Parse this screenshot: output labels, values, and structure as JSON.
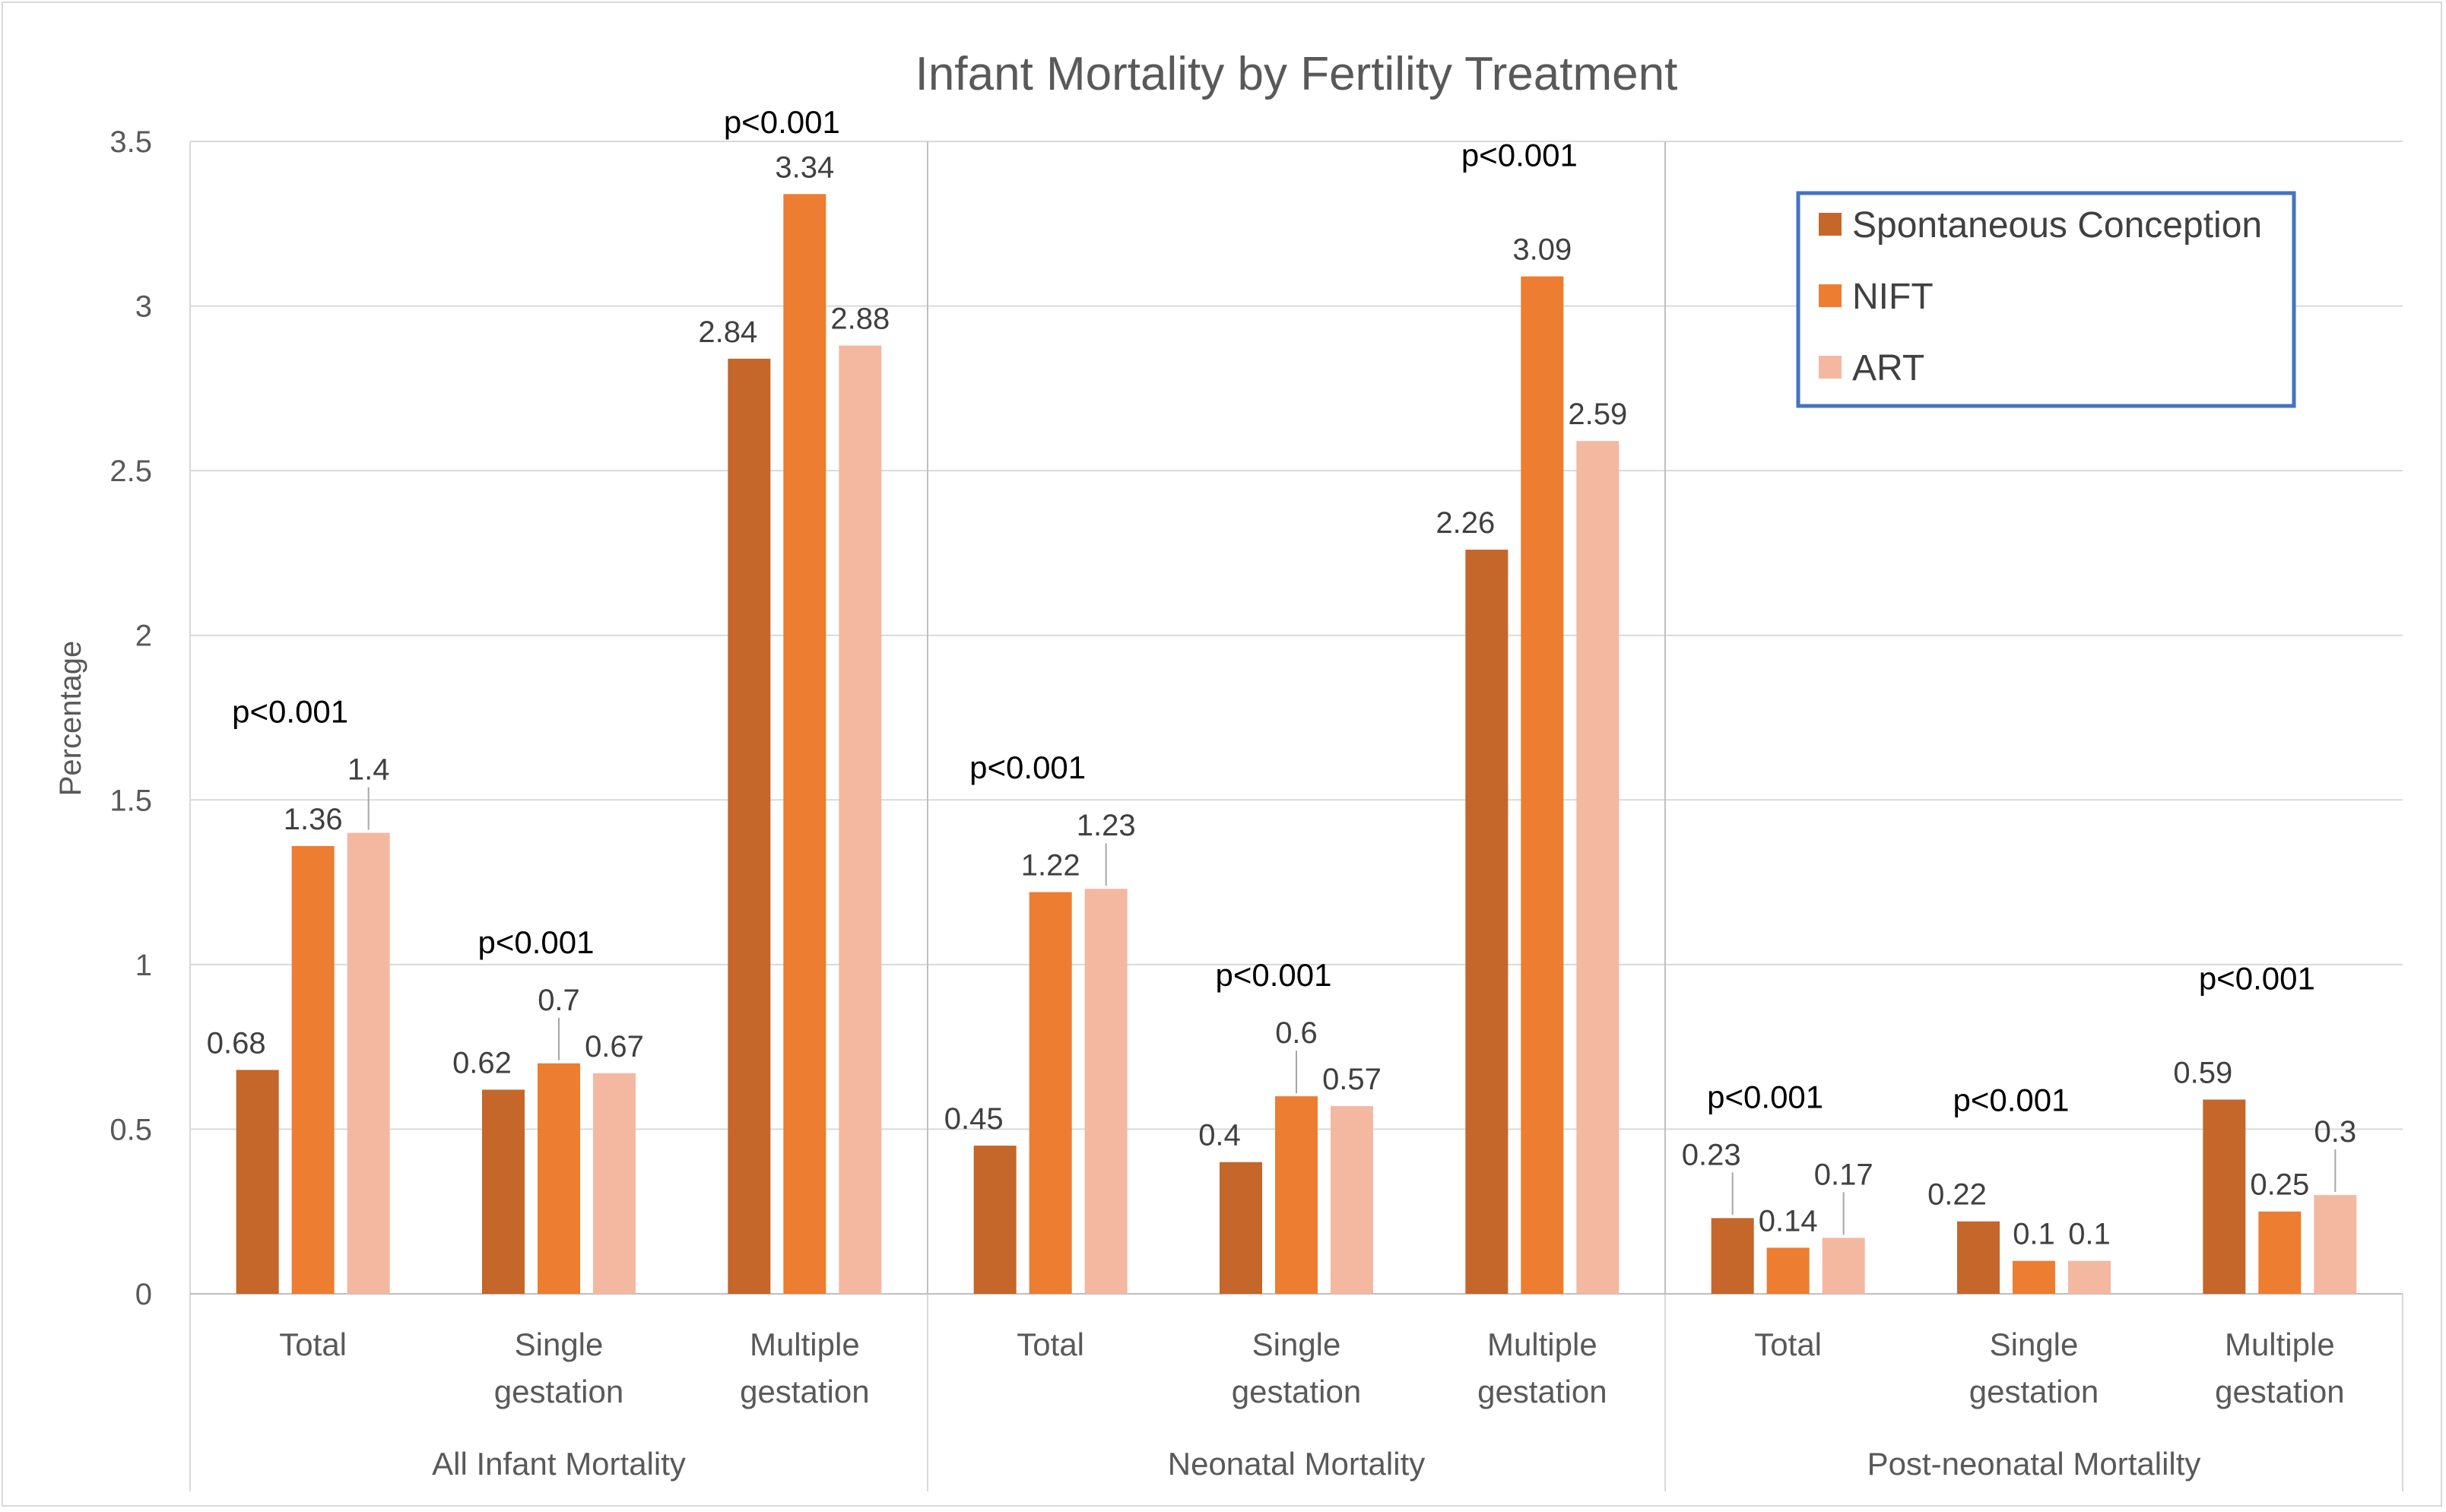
{
  "chart_data": {
    "type": "bar",
    "title": "Infant Mortality by Fertility Treatment",
    "ylabel": "Percentage",
    "xlabel": "",
    "ylim": [
      0,
      3.5
    ],
    "yticks": [
      "0",
      "0.5",
      "1",
      "1.5",
      "2",
      "2.5",
      "3",
      "3.5"
    ],
    "grid": true,
    "legend_position": "top-right",
    "groups": [
      {
        "label": "All Infant Mortality",
        "categories": [
          [
            "Total"
          ],
          [
            "Single",
            "gestation"
          ],
          [
            "Multiple",
            "gestation"
          ]
        ],
        "pvalues": [
          "p<0.001",
          "p<0.001",
          "p<0.001"
        ]
      },
      {
        "label": "Neonatal Mortality",
        "categories": [
          [
            "Total"
          ],
          [
            "Single",
            "gestation"
          ],
          [
            "Multiple",
            "gestation"
          ]
        ],
        "pvalues": [
          "p<0.001",
          "p<0.001",
          "p<0.001"
        ]
      },
      {
        "label": "Post-neonatal Mortalilty",
        "categories": [
          [
            "Total"
          ],
          [
            "Single",
            "gestation"
          ],
          [
            "Multiple",
            "gestation"
          ]
        ],
        "pvalues": [
          "p<0.001",
          "p<0.001",
          "p<0.001"
        ]
      }
    ],
    "series": [
      {
        "name": "Spontaneous Conception",
        "color": "#c5662a",
        "values": [
          0.68,
          0.62,
          2.84,
          0.45,
          0.4,
          2.26,
          0.23,
          0.22,
          0.59
        ],
        "labels": [
          "0.68",
          "0.62",
          "2.84",
          "0.45",
          "0.4",
          "2.26",
          "0.23",
          "0.22",
          "0.59"
        ]
      },
      {
        "name": "NIFT",
        "color": "#ed7d31",
        "values": [
          1.36,
          0.7,
          3.34,
          1.22,
          0.6,
          3.09,
          0.14,
          0.1,
          0.25
        ],
        "labels": [
          "1.36",
          "0.7",
          "3.34",
          "1.22",
          "0.6",
          "3.09",
          "0.14",
          "0.1",
          "0.25"
        ]
      },
      {
        "name": "ART",
        "color": "#f4b8a1",
        "values": [
          1.4,
          0.67,
          2.88,
          1.23,
          0.57,
          2.59,
          0.17,
          0.1,
          0.3
        ],
        "labels": [
          "1.4",
          "0.67",
          "2.88",
          "1.23",
          "0.57",
          "2.59",
          "0.17",
          "0.1",
          "0.3"
        ]
      }
    ]
  },
  "colors": {
    "gridline": "#d9d9d9",
    "legend_border": "#4472c4",
    "text": "#595959"
  }
}
